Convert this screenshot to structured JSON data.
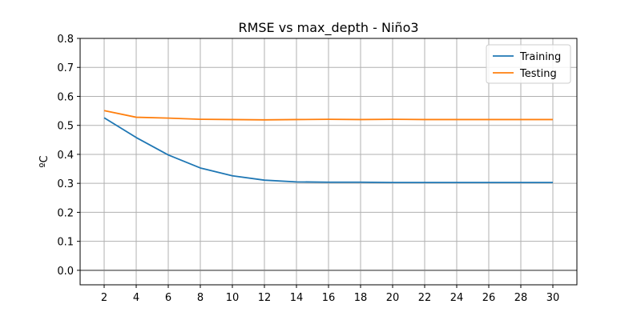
{
  "chart_data": {
    "type": "line",
    "title": "RMSE vs max_depth - Niño3",
    "xlabel": "",
    "ylabel": "ºC",
    "x": [
      2,
      4,
      6,
      8,
      10,
      12,
      14,
      16,
      18,
      20,
      22,
      24,
      26,
      28,
      30
    ],
    "xlim": [
      0.5,
      31.5
    ],
    "ylim": [
      -0.05,
      0.8
    ],
    "yticks": [
      0.0,
      0.1,
      0.2,
      0.3,
      0.4,
      0.5,
      0.6,
      0.7,
      0.8
    ],
    "ytick_labels": [
      "0.0",
      "0.1",
      "0.2",
      "0.3",
      "0.4",
      "0.5",
      "0.6",
      "0.7",
      "0.8"
    ],
    "xticks": [
      2,
      4,
      6,
      8,
      10,
      12,
      14,
      16,
      18,
      20,
      22,
      24,
      26,
      28,
      30
    ],
    "xtick_labels": [
      "2",
      "4",
      "6",
      "8",
      "10",
      "12",
      "14",
      "16",
      "18",
      "20",
      "22",
      "24",
      "26",
      "28",
      "30"
    ],
    "grid": true,
    "reference_line": {
      "y": 0.0,
      "color": "#808080"
    },
    "legend_position": "top-right",
    "series": [
      {
        "name": "Training",
        "color": "#1f77b4",
        "values": [
          0.526,
          0.458,
          0.398,
          0.353,
          0.326,
          0.311,
          0.305,
          0.304,
          0.304,
          0.303,
          0.303,
          0.303,
          0.303,
          0.303,
          0.303
        ]
      },
      {
        "name": "Testing",
        "color": "#ff7f0e",
        "values": [
          0.551,
          0.528,
          0.525,
          0.521,
          0.52,
          0.519,
          0.52,
          0.521,
          0.52,
          0.521,
          0.52,
          0.52,
          0.52,
          0.52,
          0.52
        ]
      }
    ]
  }
}
